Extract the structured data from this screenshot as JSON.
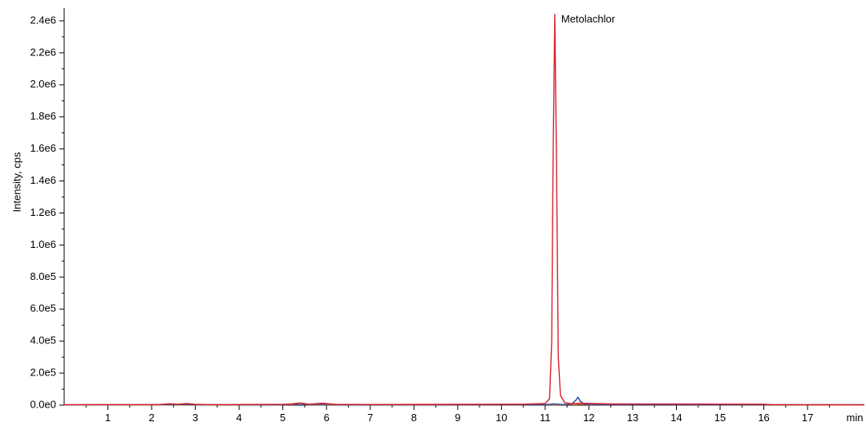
{
  "chart_data": {
    "type": "line",
    "title": "",
    "xlabel": "min",
    "ylabel": "Intensity, cps",
    "xlim": [
      0,
      18.3
    ],
    "ylim": [
      0,
      2480000
    ],
    "x_ticks": [
      1,
      2,
      3,
      4,
      5,
      6,
      7,
      8,
      9,
      10,
      11,
      12,
      13,
      14,
      15,
      16,
      17
    ],
    "x_tick_labels": [
      "1",
      "2",
      "3",
      "4",
      "5",
      "6",
      "7",
      "8",
      "9",
      "10",
      "11",
      "12",
      "13",
      "14",
      "15",
      "16",
      "17"
    ],
    "y_ticks": [
      0,
      200000,
      400000,
      600000,
      800000,
      1000000,
      1200000,
      1400000,
      1600000,
      1800000,
      2000000,
      2200000,
      2400000
    ],
    "y_tick_labels": [
      "0.0e0",
      "2.0e5",
      "4.0e5",
      "6.0e5",
      "8.0e5",
      "1.0e6",
      "1.2e6",
      "1.4e6",
      "1.6e6",
      "1.8e6",
      "2.0e6",
      "2.2e6",
      "2.4e6"
    ],
    "grid": false,
    "series": [
      {
        "color": "#d9202a",
        "points": [
          [
            0,
            3000
          ],
          [
            2.2,
            4000
          ],
          [
            2.4,
            9000
          ],
          [
            2.6,
            6000
          ],
          [
            2.8,
            10000
          ],
          [
            3.0,
            5000
          ],
          [
            3.5,
            3000
          ],
          [
            4.0,
            4000
          ],
          [
            5.0,
            5000
          ],
          [
            5.2,
            8000
          ],
          [
            5.4,
            14000
          ],
          [
            5.6,
            6000
          ],
          [
            5.9,
            12000
          ],
          [
            6.2,
            5000
          ],
          [
            7.0,
            4000
          ],
          [
            9.0,
            5000
          ],
          [
            10.5,
            6000
          ],
          [
            11.0,
            10000
          ],
          [
            11.1,
            40000
          ],
          [
            11.15,
            400000
          ],
          [
            11.18,
            1500000
          ],
          [
            11.22,
            2440000
          ],
          [
            11.26,
            1500000
          ],
          [
            11.3,
            300000
          ],
          [
            11.35,
            60000
          ],
          [
            11.45,
            15000
          ],
          [
            11.6,
            9000
          ],
          [
            11.8,
            12000
          ],
          [
            12.5,
            8000
          ],
          [
            14.0,
            7000
          ],
          [
            16.0,
            6000
          ],
          [
            16.2,
            3000
          ],
          [
            18.3,
            2000
          ]
        ]
      },
      {
        "color": "#2a3f9e",
        "points": [
          [
            0,
            2000
          ],
          [
            2.0,
            3000
          ],
          [
            2.5,
            5000
          ],
          [
            3.0,
            3000
          ],
          [
            5.0,
            3000
          ],
          [
            5.2,
            7000
          ],
          [
            5.4,
            4000
          ],
          [
            6.0,
            6000
          ],
          [
            6.3,
            3000
          ],
          [
            9.0,
            3000
          ],
          [
            11.0,
            3000
          ],
          [
            11.2,
            8000
          ],
          [
            11.4,
            4000
          ],
          [
            11.6,
            6000
          ],
          [
            11.7,
            30000
          ],
          [
            11.75,
            50000
          ],
          [
            11.8,
            25000
          ],
          [
            11.9,
            6000
          ],
          [
            12.2,
            4000
          ],
          [
            15.0,
            3000
          ],
          [
            18.3,
            3000
          ]
        ]
      },
      {
        "color": "#d4883a",
        "points": [
          [
            0,
            1000
          ],
          [
            5.0,
            2000
          ],
          [
            5.3,
            5000
          ],
          [
            5.6,
            2000
          ],
          [
            9.0,
            2000
          ],
          [
            11.2,
            3000
          ],
          [
            11.7,
            4000
          ],
          [
            11.8,
            7000
          ],
          [
            12.0,
            3000
          ],
          [
            16.0,
            2000
          ],
          [
            18.3,
            1000
          ]
        ]
      }
    ],
    "annotations": [
      {
        "text": "Metolachlor",
        "x": 11.22,
        "y": 2440000
      }
    ]
  }
}
